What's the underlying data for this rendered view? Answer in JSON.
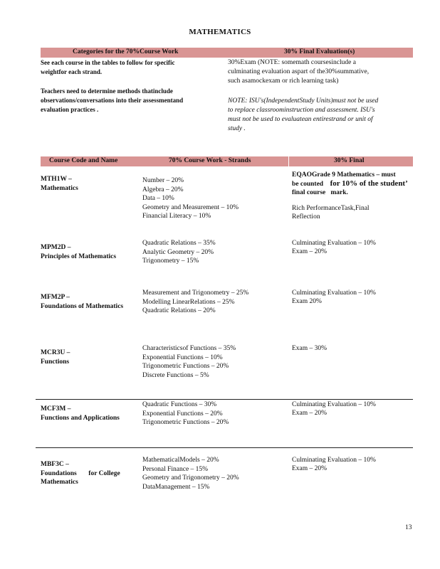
{
  "title": "MATHEMATICS",
  "summary": {
    "headers": [
      "Categories for the 70%Course Work",
      "30% Final Evaluation(s)"
    ],
    "left": [
      "See each course in the tables to follow for specific",
      "weightfor each strand.",
      "",
      "Teachers need to determine methods thatinclude",
      "observations/conversations into their assessmentand",
      "evaluation practices ."
    ],
    "right": [
      "30%Exam (NOTE: somemath coursesinclude a",
      "culminating evaluation aspart of the30%summative,",
      "such asamockexam or rich learning task)"
    ],
    "note": [
      "NOTE: ISU's(IndependentStudy Units)must not be used",
      "to replace classroominstruction and assessment. ISU's",
      "must not be used to evaluatean entirestrand or unit of",
      "study ."
    ]
  },
  "table": {
    "headers": [
      "Course Code and Name",
      "70% Course Work - Strands",
      "30% Final"
    ],
    "rows": [
      {
        "code": "MTH1W –",
        "name": "Mathematics",
        "strands": [
          "Number – 20%",
          "Algebra – 20%",
          "Data – 10%",
          "Geometry and Measurement – 10%",
          "Financial Literacy – 10%"
        ],
        "final": [
          "EQAOGrade 9 Mathematics – must",
          "be counted",
          "for 10% of the student’",
          "final course",
          "mark.",
          "",
          "Rich PerformanceTask,Final",
          "Reflection"
        ]
      },
      {
        "code": "MPM2D –",
        "name": "Principles of Mathematics",
        "strands": [
          "Quadratic Relations – 35%",
          "Analytic Geometry – 20%",
          "Trigonometry – 15%"
        ],
        "final": [
          "Culminating Evaluation – 10%",
          "Exam – 20%"
        ]
      },
      {
        "code": "MFM2P –",
        "name": "Foundations of Mathematics",
        "strands": [
          "Measurement and Trigonometry – 25%",
          "Modelling LinearRelations – 25%",
          "Quadratic Relations – 20%"
        ],
        "final": [
          "Culminating Evaluation – 10%",
          "Exam 20%"
        ]
      },
      {
        "code": "MCR3U –",
        "name": "Functions",
        "strands": [
          "Characteristicsof Functions – 35%",
          "Exponential Functions – 10%",
          "Trigonometric Functions – 20%",
          "Discrete Functions – 5%"
        ],
        "final": [
          "Exam – 30%"
        ]
      },
      {
        "code": "MCF3M –",
        "name": "Functions and Applications",
        "strands": [
          "Quadratic Functions – 30%",
          "Exponential Functions – 20%",
          "Trigonometric Functions – 20%"
        ],
        "final": [
          "Culminating Evaluation – 10%",
          "Exam – 20%"
        ]
      },
      {
        "code": "MBF3C –",
        "name": "Foundations for College Mathematics",
        "strands": [
          "MathematicalModels – 20%",
          "Personal Finance – 15%",
          "Geometry and Trigonometry – 20%",
          "DataManagement – 15%"
        ],
        "final": [
          "Culminating Evaluation – 10%",
          "Exam – 20%"
        ]
      }
    ]
  },
  "page_number": "13",
  "colors": {
    "header_bar": "#d99594"
  }
}
